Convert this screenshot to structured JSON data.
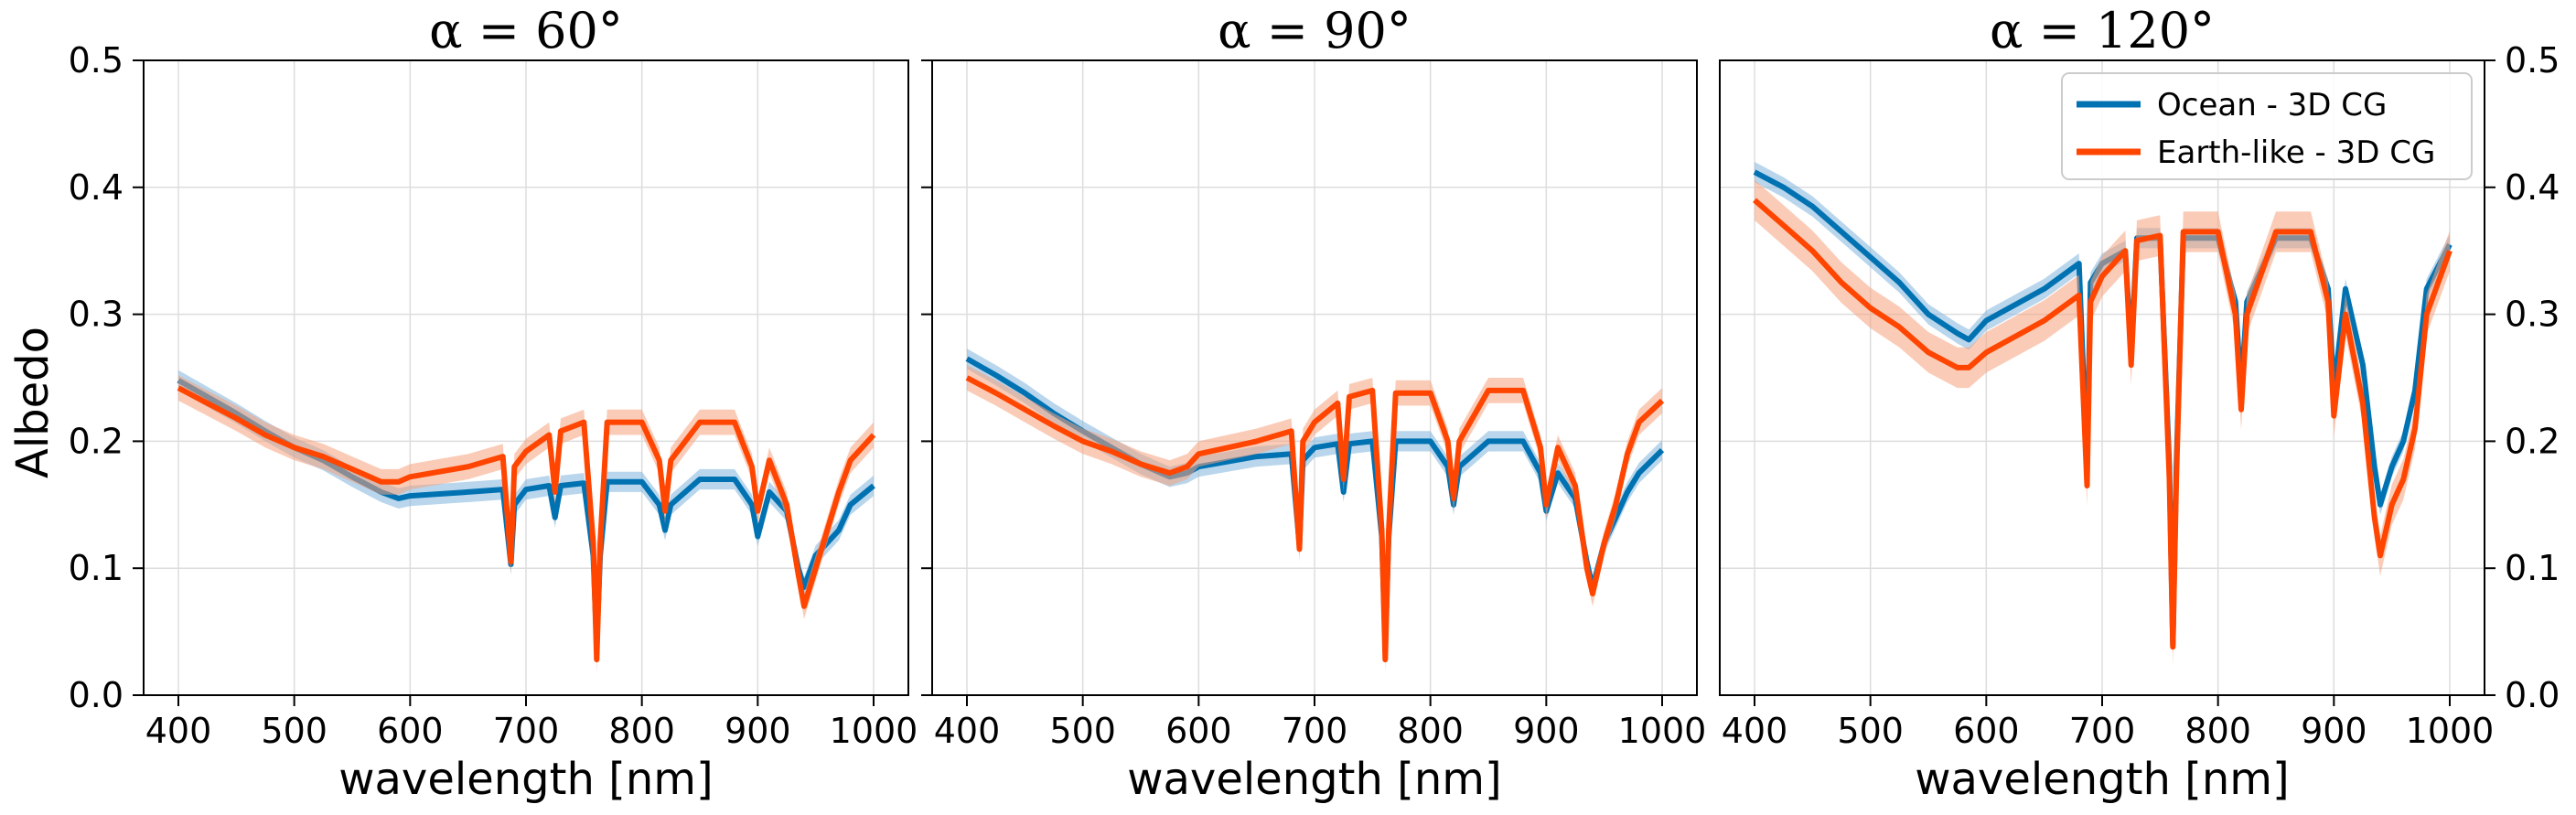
{
  "figure": {
    "ylabel": "Albedo",
    "xlabel": "wavelength [nm]",
    "colors": {
      "ocean": "#0072b2",
      "ocean_band": "#7fb4dd",
      "earth": "#ff4500",
      "earth_band": "#f5a37e"
    }
  },
  "legend": {
    "placement": "top-right",
    "entries": [
      {
        "name": "Ocean - 3D CG",
        "color": "#0072b2"
      },
      {
        "name": "Earth-like - 3D CG",
        "color": "#ff4500"
      }
    ]
  },
  "chart_data": [
    {
      "type": "line",
      "title": "α = 60°",
      "xlabel": "wavelength [nm]",
      "ylabel": "Albedo",
      "xlim": [
        370,
        1030
      ],
      "ylim": [
        0.0,
        0.5
      ],
      "xticks": [
        "400",
        "500",
        "600",
        "700",
        "800",
        "900",
        "1000"
      ],
      "yticks": [
        "0.0",
        "0.1",
        "0.2",
        "0.3",
        "0.4",
        "0.5"
      ],
      "grid": true,
      "series": [
        {
          "name": "Ocean - 3D CG",
          "band": 0.008,
          "x": [
            400,
            425,
            450,
            475,
            500,
            525,
            550,
            575,
            590,
            600,
            650,
            680,
            687,
            690,
            700,
            720,
            725,
            730,
            750,
            758,
            761,
            764,
            770,
            800,
            815,
            820,
            825,
            850,
            880,
            895,
            900,
            910,
            925,
            935,
            940,
            950,
            960,
            970,
            980,
            1000
          ],
          "y": [
            0.248,
            0.235,
            0.222,
            0.208,
            0.195,
            0.185,
            0.172,
            0.16,
            0.155,
            0.157,
            0.16,
            0.162,
            0.103,
            0.15,
            0.162,
            0.165,
            0.14,
            0.165,
            0.167,
            0.11,
            0.04,
            0.11,
            0.168,
            0.168,
            0.15,
            0.13,
            0.15,
            0.17,
            0.17,
            0.15,
            0.125,
            0.16,
            0.145,
            0.1,
            0.085,
            0.11,
            0.12,
            0.13,
            0.15,
            0.165
          ]
        },
        {
          "name": "Earth-like - 3D CG",
          "band": 0.01,
          "x": [
            400,
            425,
            450,
            475,
            500,
            525,
            550,
            575,
            590,
            600,
            650,
            680,
            687,
            690,
            700,
            720,
            725,
            730,
            750,
            758,
            761,
            764,
            770,
            800,
            815,
            820,
            825,
            850,
            880,
            895,
            900,
            910,
            925,
            935,
            940,
            950,
            960,
            970,
            980,
            1000
          ],
          "y": [
            0.242,
            0.23,
            0.218,
            0.205,
            0.195,
            0.188,
            0.178,
            0.168,
            0.168,
            0.172,
            0.18,
            0.188,
            0.105,
            0.18,
            0.192,
            0.205,
            0.16,
            0.208,
            0.215,
            0.12,
            0.028,
            0.12,
            0.215,
            0.215,
            0.185,
            0.145,
            0.185,
            0.215,
            0.215,
            0.18,
            0.145,
            0.185,
            0.15,
            0.095,
            0.07,
            0.1,
            0.13,
            0.16,
            0.185,
            0.205
          ]
        }
      ]
    },
    {
      "type": "line",
      "title": "α = 90°",
      "xlabel": "wavelength [nm]",
      "ylabel": "",
      "xlim": [
        370,
        1030
      ],
      "ylim": [
        0.0,
        0.5
      ],
      "xticks": [
        "400",
        "500",
        "600",
        "700",
        "800",
        "900",
        "1000"
      ],
      "yticks": [],
      "grid": true,
      "series": [
        {
          "name": "Ocean - 3D CG",
          "band": 0.008,
          "x": [
            400,
            425,
            450,
            475,
            500,
            525,
            550,
            575,
            590,
            600,
            650,
            680,
            687,
            690,
            700,
            720,
            725,
            730,
            750,
            758,
            761,
            764,
            770,
            800,
            815,
            820,
            825,
            850,
            880,
            895,
            900,
            910,
            925,
            935,
            940,
            950,
            960,
            970,
            980,
            1000
          ],
          "y": [
            0.265,
            0.252,
            0.238,
            0.222,
            0.208,
            0.195,
            0.182,
            0.172,
            0.175,
            0.18,
            0.188,
            0.19,
            0.118,
            0.185,
            0.195,
            0.198,
            0.16,
            0.198,
            0.2,
            0.125,
            0.04,
            0.125,
            0.2,
            0.2,
            0.18,
            0.15,
            0.18,
            0.2,
            0.2,
            0.175,
            0.145,
            0.175,
            0.155,
            0.105,
            0.085,
            0.12,
            0.14,
            0.16,
            0.175,
            0.193
          ]
        },
        {
          "name": "Earth-like - 3D CG",
          "band": 0.01,
          "x": [
            400,
            425,
            450,
            475,
            500,
            525,
            550,
            575,
            590,
            600,
            650,
            680,
            687,
            690,
            700,
            720,
            725,
            730,
            750,
            758,
            761,
            764,
            770,
            800,
            815,
            820,
            825,
            850,
            880,
            895,
            900,
            910,
            925,
            935,
            940,
            950,
            960,
            970,
            980,
            1000
          ],
          "y": [
            0.25,
            0.238,
            0.225,
            0.212,
            0.2,
            0.192,
            0.182,
            0.175,
            0.18,
            0.19,
            0.2,
            0.208,
            0.115,
            0.2,
            0.215,
            0.23,
            0.17,
            0.235,
            0.24,
            0.13,
            0.028,
            0.13,
            0.238,
            0.238,
            0.2,
            0.155,
            0.2,
            0.24,
            0.24,
            0.195,
            0.15,
            0.195,
            0.165,
            0.1,
            0.08,
            0.12,
            0.15,
            0.19,
            0.215,
            0.232
          ]
        }
      ]
    },
    {
      "type": "line",
      "title": "α = 120°",
      "xlabel": "wavelength [nm]",
      "ylabel": "",
      "xlim": [
        370,
        1030
      ],
      "ylim": [
        0.0,
        0.5
      ],
      "xticks": [
        "400",
        "500",
        "600",
        "700",
        "800",
        "900",
        "1000"
      ],
      "yticks": [
        "0.0",
        "0.1",
        "0.2",
        "0.3",
        "0.4",
        "0.5"
      ],
      "ytick_side": "right",
      "grid": true,
      "series": [
        {
          "name": "Ocean - 3D CG",
          "band": 0.008,
          "x": [
            400,
            425,
            450,
            475,
            500,
            525,
            550,
            575,
            585,
            600,
            650,
            680,
            687,
            690,
            700,
            720,
            725,
            730,
            750,
            758,
            761,
            764,
            770,
            800,
            815,
            820,
            825,
            850,
            880,
            895,
            900,
            910,
            925,
            935,
            940,
            950,
            960,
            970,
            980,
            1000
          ],
          "y": [
            0.412,
            0.4,
            0.385,
            0.365,
            0.345,
            0.325,
            0.3,
            0.285,
            0.28,
            0.295,
            0.32,
            0.34,
            0.18,
            0.325,
            0.34,
            0.35,
            0.27,
            0.36,
            0.36,
            0.18,
            0.04,
            0.18,
            0.36,
            0.36,
            0.31,
            0.24,
            0.31,
            0.36,
            0.36,
            0.32,
            0.24,
            0.32,
            0.26,
            0.18,
            0.15,
            0.18,
            0.2,
            0.24,
            0.32,
            0.355
          ]
        },
        {
          "name": "Earth-like - 3D CG",
          "band": 0.016,
          "x": [
            400,
            425,
            450,
            475,
            500,
            525,
            550,
            575,
            585,
            600,
            650,
            680,
            687,
            690,
            700,
            720,
            725,
            730,
            750,
            758,
            761,
            764,
            770,
            800,
            815,
            820,
            825,
            850,
            880,
            895,
            900,
            910,
            925,
            935,
            940,
            950,
            960,
            970,
            980,
            1000
          ],
          "y": [
            0.39,
            0.37,
            0.35,
            0.325,
            0.305,
            0.29,
            0.27,
            0.258,
            0.258,
            0.27,
            0.295,
            0.315,
            0.165,
            0.31,
            0.33,
            0.35,
            0.26,
            0.358,
            0.362,
            0.17,
            0.038,
            0.17,
            0.365,
            0.365,
            0.3,
            0.225,
            0.3,
            0.365,
            0.365,
            0.31,
            0.22,
            0.3,
            0.23,
            0.14,
            0.11,
            0.15,
            0.17,
            0.21,
            0.3,
            0.35
          ]
        }
      ]
    }
  ]
}
